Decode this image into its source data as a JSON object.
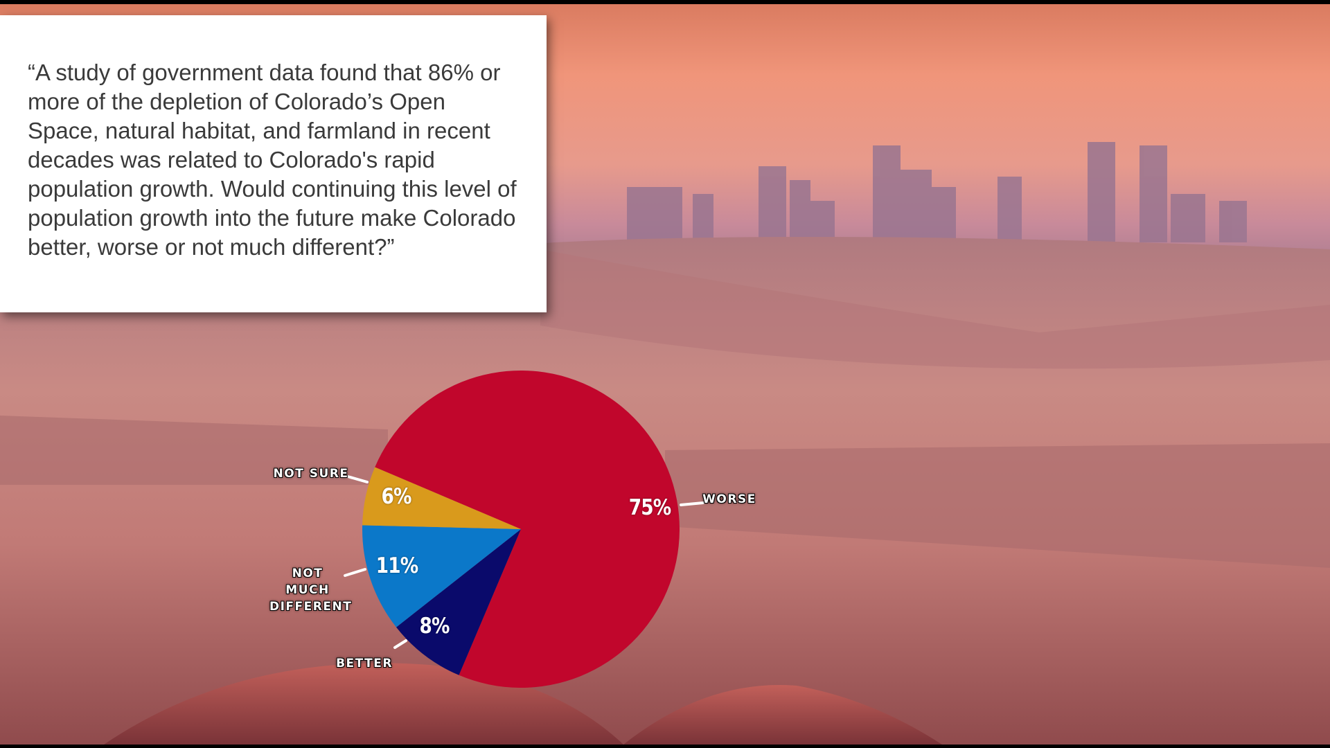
{
  "chart_data": {
    "type": "pie",
    "title": "“A study of government data found that 86% or more of the depletion of Colorado’s Open Space, natural habitat, and farmland in recent decades was related to Colorado's rapid population growth. Would continuing this level of population growth into the future make Colorado better, worse or not much different?”",
    "categories": [
      "WORSE",
      "BETTER",
      "NOT MUCH DIFFERENT",
      "NOT SURE"
    ],
    "values": [
      75,
      8,
      11,
      6
    ],
    "value_labels": [
      "75%",
      "8%",
      "11%",
      "6%"
    ],
    "colors": [
      "#c1062c",
      "#0a0a6b",
      "#0b78c9",
      "#d99a1c"
    ]
  }
}
